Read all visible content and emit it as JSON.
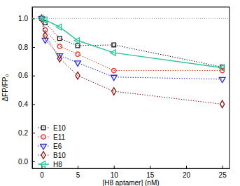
{
  "chart_data": {
    "type": "line",
    "x_label": "[H8 aptamer] (nM)",
    "y_label": "ΔFP/FP₀",
    "x": [
      0,
      0.5,
      2.5,
      5,
      10,
      25
    ],
    "series": [
      {
        "name": "E10",
        "color": "#1a1a1a",
        "marker": "square",
        "line_style": "dotted",
        "values": [
          1.0,
          0.97,
          0.86,
          0.81,
          0.815,
          0.66
        ]
      },
      {
        "name": "E11",
        "color": "#e8322a",
        "marker": "circle",
        "line_style": "dotted",
        "values": [
          1.0,
          0.92,
          0.805,
          0.75,
          0.635,
          0.635
        ]
      },
      {
        "name": "E6",
        "color": "#2b2bd9",
        "marker": "triangle-down",
        "line_style": "dotted",
        "values": [
          1.0,
          0.85,
          0.74,
          0.69,
          0.59,
          0.575
        ]
      },
      {
        "name": "B10",
        "color": "#8b1a1a",
        "marker": "diamond",
        "line_style": "dotted",
        "values": [
          1.0,
          0.88,
          0.72,
          0.6,
          0.49,
          0.4
        ]
      },
      {
        "name": "H8",
        "color": "#2ec49a",
        "marker": "triangle-left",
        "line_style": "solid",
        "values": [
          1.0,
          0.99,
          0.94,
          0.845,
          0.76,
          0.655
        ]
      }
    ],
    "hline": 1,
    "xlim": [
      -1.3,
      26
    ],
    "ylim": [
      -0.05,
      1.08
    ],
    "xticks": [
      0,
      5,
      10,
      15,
      20,
      25
    ],
    "yticks": [
      {
        "value": 0,
        "label": "0.0"
      },
      {
        "value": 0.2,
        "label": "0.2"
      },
      {
        "value": 0.4,
        "label": "0.4"
      },
      {
        "value": 0.6,
        "label": "0.6"
      },
      {
        "value": 0.8,
        "label": "0.8"
      },
      {
        "value": 1.0,
        "label": "1.0"
      }
    ],
    "legend": "lower left",
    "grid": false
  }
}
